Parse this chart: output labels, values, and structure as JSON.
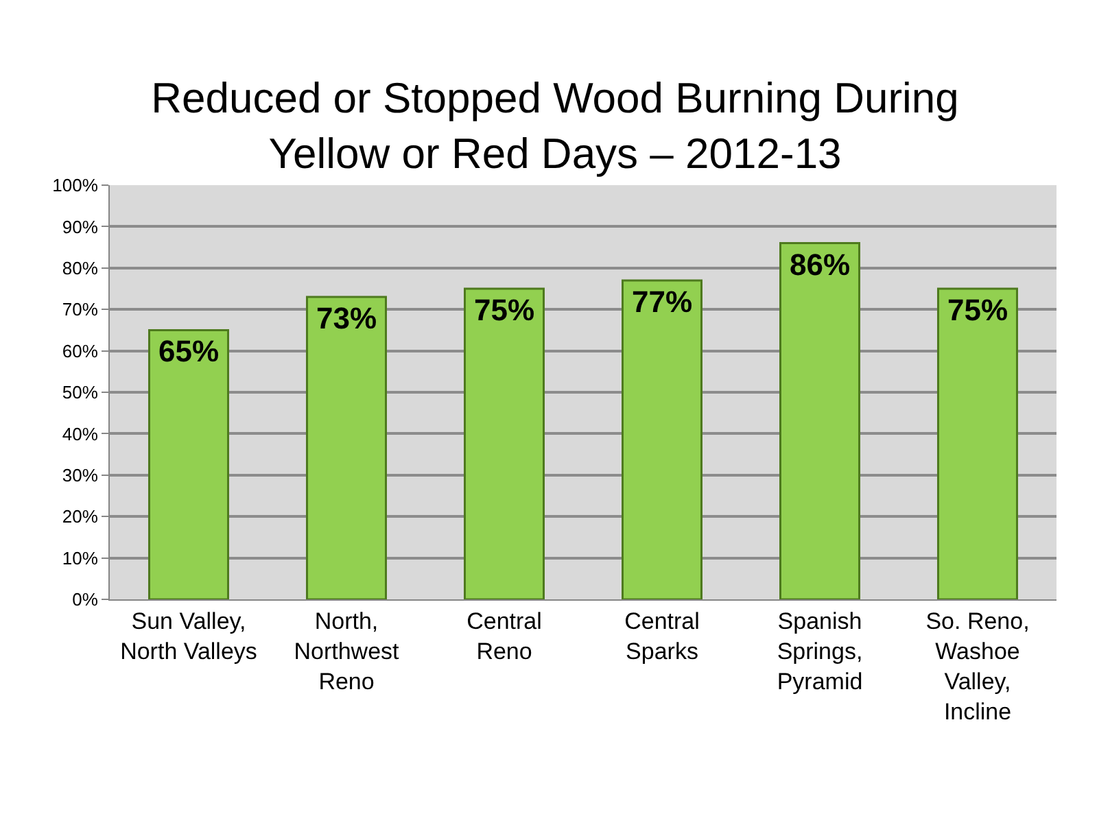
{
  "chart_data": {
    "type": "bar",
    "title": "Reduced or Stopped Wood Burning During\nYellow or Red Days – 2012-13",
    "categories": [
      "Sun Valley,\nNorth Valleys",
      "North,\nNorthwest\nReno",
      "Central\nReno",
      "Central\nSparks",
      "Spanish\nSprings,\nPyramid",
      "So. Reno,\nWashoe\nValley,\nIncline"
    ],
    "values": [
      65,
      73,
      75,
      77,
      86,
      75
    ],
    "value_labels": [
      "65%",
      "73%",
      "75%",
      "77%",
      "86%",
      "75%"
    ],
    "color": "#92d050",
    "ylim": [
      0,
      100
    ],
    "yticks": [
      {
        "value": 0,
        "label": "0%"
      },
      {
        "value": 10,
        "label": "10%"
      },
      {
        "value": 20,
        "label": "20%"
      },
      {
        "value": 30,
        "label": "30%"
      },
      {
        "value": 40,
        "label": "40%"
      },
      {
        "value": 50,
        "label": "50%"
      },
      {
        "value": 60,
        "label": "60%"
      },
      {
        "value": 70,
        "label": "70%"
      },
      {
        "value": 80,
        "label": "80%"
      },
      {
        "value": 90,
        "label": "90%"
      },
      {
        "value": 100,
        "label": "100%"
      }
    ],
    "grid": "y"
  }
}
